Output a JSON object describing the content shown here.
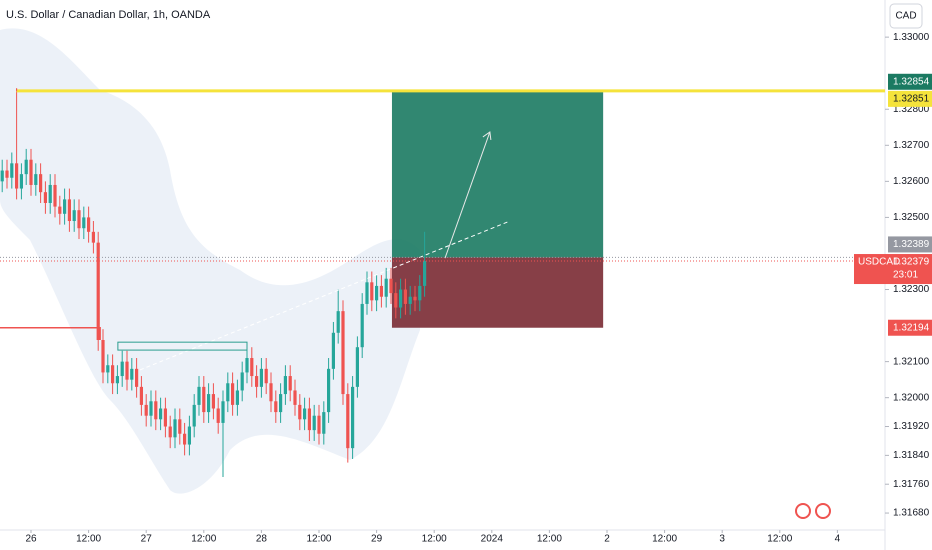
{
  "chart_data": {
    "type": "candlestick",
    "title": "U.S. Dollar / Canadian Dollar, 1h, OANDA",
    "currency_button": "CAD",
    "symbol": "USDCAD",
    "countdown": "23:01",
    "up_color": "#26a69a",
    "down_color": "#ef5350",
    "grid": false,
    "x": [
      -6,
      -5,
      -4,
      -3,
      -2,
      -1,
      0,
      1,
      2,
      3,
      4,
      5,
      6,
      7,
      8,
      9,
      10,
      11,
      12,
      13,
      14,
      15,
      16,
      17,
      18,
      19,
      20,
      21,
      22,
      23,
      24,
      25,
      26,
      27,
      28,
      29,
      30,
      31,
      32,
      33,
      34,
      35,
      36,
      37,
      38,
      39,
      40,
      41,
      42,
      43,
      44,
      45,
      46,
      47,
      48,
      49,
      50,
      51,
      52,
      53,
      54,
      55,
      56,
      57,
      58,
      59,
      60,
      61,
      62,
      63,
      64,
      65,
      66,
      67,
      68,
      69,
      70,
      71,
      72,
      73,
      74,
      75,
      76,
      77,
      78,
      79,
      80,
      81,
      82
    ],
    "open": [
      1.326,
      1.3263,
      1.3261,
      1.3265,
      1.3258,
      1.3262,
      1.3266,
      1.3259,
      1.3262,
      1.3257,
      1.3254,
      1.3259,
      1.3253,
      1.3251,
      1.3255,
      1.3249,
      1.3252,
      1.3247,
      1.325,
      1.3246,
      1.3243,
      1.3216,
      1.3207,
      1.3209,
      1.3204,
      1.3206,
      1.321,
      1.3205,
      1.3208,
      1.3203,
      1.3198,
      1.3195,
      1.3199,
      1.3194,
      1.3197,
      1.3192,
      1.3189,
      1.3194,
      1.319,
      1.3187,
      1.3192,
      1.3198,
      1.3203,
      1.3196,
      1.3201,
      1.3197,
      1.3193,
      1.3199,
      1.3204,
      1.3198,
      1.3202,
      1.3207,
      1.3211,
      1.3206,
      1.3203,
      1.3208,
      1.3204,
      1.3199,
      1.3196,
      1.3201,
      1.3206,
      1.3202,
      1.3198,
      1.3194,
      1.3197,
      1.3191,
      1.3195,
      1.319,
      1.3196,
      1.3208,
      1.3218,
      1.3224,
      1.3201,
      1.3186,
      1.3203,
      1.3214,
      1.3226,
      1.3232,
      1.3227,
      1.3231,
      1.3228,
      1.3233,
      1.3229,
      1.3225,
      1.323,
      1.3226,
      1.3228,
      1.3227,
      1.3231
    ],
    "high": [
      1.3266,
      1.3266,
      1.3268,
      1.32858,
      1.3265,
      1.3269,
      1.3269,
      1.3265,
      1.3265,
      1.326,
      1.3262,
      1.3262,
      1.3256,
      1.3258,
      1.3258,
      1.3255,
      1.3255,
      1.3253,
      1.3253,
      1.3249,
      1.3246,
      1.3219,
      1.3212,
      1.3212,
      1.3209,
      1.3213,
      1.3213,
      1.3211,
      1.3211,
      1.3206,
      1.3201,
      1.3202,
      1.3202,
      1.32,
      1.32,
      1.3195,
      1.3197,
      1.3197,
      1.3193,
      1.3195,
      1.3201,
      1.3206,
      1.3206,
      1.3204,
      1.3204,
      1.32,
      1.3202,
      1.3207,
      1.3207,
      1.3205,
      1.321,
      1.3214,
      1.3214,
      1.3209,
      1.3211,
      1.3211,
      1.3207,
      1.3202,
      1.3204,
      1.3209,
      1.3209,
      1.3205,
      1.3201,
      1.32,
      1.32,
      1.3198,
      1.3198,
      1.3199,
      1.3211,
      1.3221,
      1.323,
      1.3227,
      1.3204,
      1.3206,
      1.3217,
      1.3229,
      1.3235,
      1.3235,
      1.3234,
      1.3234,
      1.3236,
      1.3236,
      1.3232,
      1.3233,
      1.3233,
      1.3231,
      1.3231,
      1.3234,
      1.3246
    ],
    "low": [
      1.3257,
      1.3258,
      1.3258,
      1.3255,
      1.3255,
      1.3259,
      1.3256,
      1.3256,
      1.3254,
      1.3251,
      1.3251,
      1.325,
      1.3248,
      1.3248,
      1.3246,
      1.3246,
      1.3244,
      1.3244,
      1.3243,
      1.324,
      1.3213,
      1.3204,
      1.3204,
      1.3201,
      1.3201,
      1.3203,
      1.3202,
      1.3202,
      1.32,
      1.3195,
      1.3192,
      1.3192,
      1.3191,
      1.3191,
      1.3189,
      1.3186,
      1.3186,
      1.3187,
      1.3184,
      1.3184,
      1.3189,
      1.3195,
      1.3193,
      1.3193,
      1.3194,
      1.319,
      1.3178,
      1.3196,
      1.3195,
      1.3195,
      1.3199,
      1.3204,
      1.3203,
      1.32,
      1.32,
      1.3201,
      1.3196,
      1.3193,
      1.3193,
      1.3198,
      1.3199,
      1.3195,
      1.3191,
      1.3191,
      1.3188,
      1.3188,
      1.3187,
      1.3187,
      1.3193,
      1.3205,
      1.3215,
      1.3198,
      1.3182,
      1.3183,
      1.32,
      1.3211,
      1.3223,
      1.3224,
      1.3224,
      1.3225,
      1.3225,
      1.3226,
      1.3222,
      1.3222,
      1.3223,
      1.3223,
      1.3224,
      1.3224,
      1.3228
    ],
    "close": [
      1.3263,
      1.3261,
      1.3265,
      1.3258,
      1.3262,
      1.3266,
      1.3259,
      1.3262,
      1.3257,
      1.3254,
      1.3259,
      1.3253,
      1.3251,
      1.3255,
      1.3249,
      1.3252,
      1.3247,
      1.325,
      1.3246,
      1.3243,
      1.3216,
      1.3207,
      1.3209,
      1.3204,
      1.3206,
      1.321,
      1.3205,
      1.3208,
      1.3203,
      1.3198,
      1.3195,
      1.3199,
      1.3194,
      1.3197,
      1.3192,
      1.3189,
      1.3194,
      1.319,
      1.3187,
      1.3192,
      1.3198,
      1.3203,
      1.3196,
      1.3201,
      1.3197,
      1.3193,
      1.3199,
      1.3204,
      1.3198,
      1.3202,
      1.3207,
      1.3211,
      1.3206,
      1.3203,
      1.3208,
      1.3204,
      1.3199,
      1.3196,
      1.3201,
      1.3206,
      1.3202,
      1.3198,
      1.3194,
      1.3197,
      1.3191,
      1.3195,
      1.319,
      1.3196,
      1.3208,
      1.3218,
      1.3224,
      1.3201,
      1.3186,
      1.3203,
      1.3214,
      1.3226,
      1.3232,
      1.3227,
      1.3231,
      1.3228,
      1.3233,
      1.3229,
      1.3225,
      1.323,
      1.3226,
      1.3228,
      1.3227,
      1.3231,
      1.32379
    ],
    "xlim": [
      -6.46,
      177.92
    ],
    "xticks": [
      {
        "value": 0,
        "label": "26"
      },
      {
        "value": 12,
        "label": "12:00"
      },
      {
        "value": 24,
        "label": "27"
      },
      {
        "value": 36,
        "label": "12:00"
      },
      {
        "value": 48,
        "label": "28"
      },
      {
        "value": 60,
        "label": "12:00"
      },
      {
        "value": 72,
        "label": "29"
      },
      {
        "value": 84,
        "label": "12:00"
      },
      {
        "value": 96,
        "label": "2024"
      },
      {
        "value": 108,
        "label": "12:00"
      },
      {
        "value": 120,
        "label": "2"
      },
      {
        "value": 132,
        "label": "12:00"
      },
      {
        "value": 144,
        "label": "3"
      },
      {
        "value": 156,
        "label": "12:00"
      },
      {
        "value": 168,
        "label": "4"
      }
    ],
    "ylim": [
      1.31633,
      1.33103
    ],
    "yticks": [
      {
        "value": 1.33,
        "label": "1.33000"
      },
      {
        "value": 1.328,
        "label": "1.32800"
      },
      {
        "value": 1.327,
        "label": "1.32700"
      },
      {
        "value": 1.326,
        "label": "1.32600"
      },
      {
        "value": 1.325,
        "label": "1.32500"
      },
      {
        "value": 1.323,
        "label": "1.32300"
      },
      {
        "value": 1.321,
        "label": "1.32100"
      },
      {
        "value": 1.32,
        "label": "1.32000"
      },
      {
        "value": 1.3192,
        "label": "1.31920"
      },
      {
        "value": 1.3184,
        "label": "1.31840"
      },
      {
        "value": 1.3176,
        "label": "1.31760"
      },
      {
        "value": 1.3168,
        "label": "1.31680"
      }
    ],
    "resistance": {
      "value": 1.32851,
      "label": "1.32851",
      "from_x": -3,
      "color": "#f5e33b"
    },
    "position": {
      "from_x": 75.2,
      "to_x": 119.2,
      "entry": {
        "value": 1.32389,
        "label": "1.32389"
      },
      "target": {
        "value": 1.32854,
        "label": "1.32854"
      },
      "stop": {
        "value": 1.32194,
        "label": "1.32194"
      }
    },
    "last_price": {
      "value": 1.32379,
      "label": "1.32379"
    },
    "trend_line": {
      "x": [
        22.7,
        99.8
      ],
      "y": [
        1.32077,
        1.3249
      ]
    },
    "arrow": {
      "x": [
        86.25,
        95.6
      ],
      "y": [
        1.32387,
        1.32737
      ]
    },
    "box": {
      "x": [
        18.1,
        45
      ],
      "y": [
        1.32154,
        1.32132
      ]
    }
  }
}
